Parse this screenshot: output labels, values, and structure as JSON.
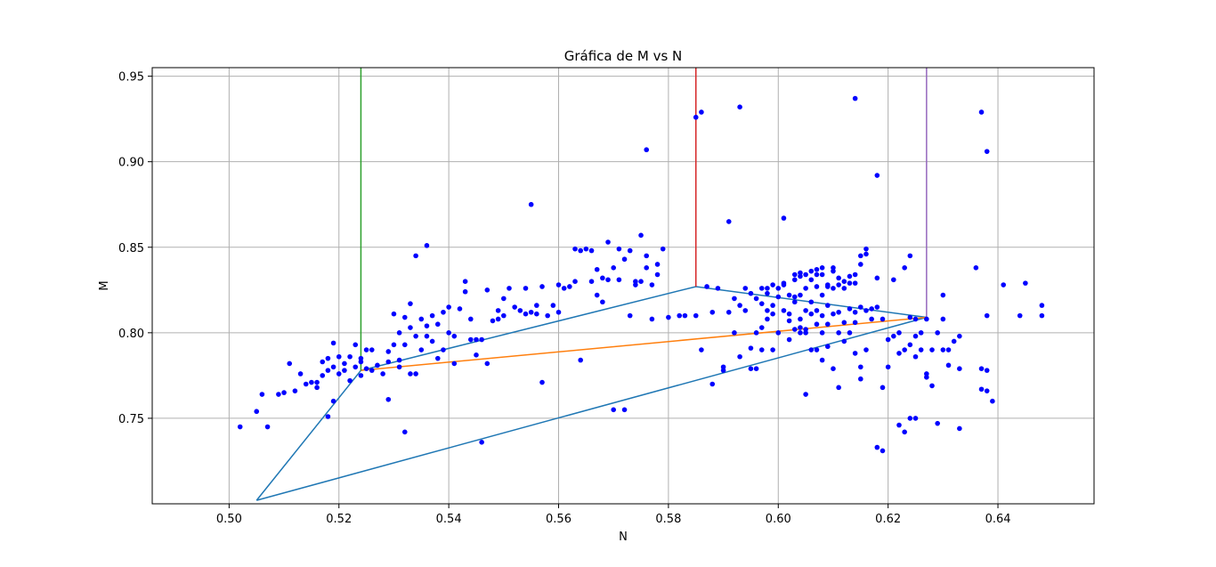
{
  "chart_data": {
    "type": "scatter",
    "title": "Gráfica de M vs N",
    "xlabel": "N",
    "ylabel": "M",
    "xlim": [
      0.486,
      0.6575
    ],
    "ylim": [
      0.7,
      0.955
    ],
    "x_ticks": [
      0.5,
      0.52,
      0.54,
      0.56,
      0.58,
      0.6,
      0.62,
      0.64
    ],
    "x_tick_labels": [
      "0.50",
      "0.52",
      "0.54",
      "0.56",
      "0.58",
      "0.60",
      "0.62",
      "0.64"
    ],
    "y_ticks": [
      0.75,
      0.8,
      0.85,
      0.9,
      0.95
    ],
    "y_tick_labels": [
      "0.75",
      "0.80",
      "0.85",
      "0.90",
      "0.95"
    ],
    "grid": true,
    "colors": {
      "points": "#0000ff",
      "triangle": "#1f77b4",
      "orange_line": "#ff7f0e",
      "green_line": "#2ca02c",
      "red_line": "#d62728",
      "purple_line": "#9467bd",
      "grid": "#b0b0b0"
    },
    "points": [
      [
        0.502,
        0.745
      ],
      [
        0.505,
        0.754
      ],
      [
        0.506,
        0.764
      ],
      [
        0.507,
        0.745
      ],
      [
        0.509,
        0.764
      ],
      [
        0.51,
        0.765
      ],
      [
        0.511,
        0.782
      ],
      [
        0.512,
        0.766
      ],
      [
        0.513,
        0.776
      ],
      [
        0.514,
        0.77
      ],
      [
        0.515,
        0.771
      ],
      [
        0.516,
        0.768
      ],
      [
        0.516,
        0.771
      ],
      [
        0.517,
        0.775
      ],
      [
        0.517,
        0.783
      ],
      [
        0.518,
        0.785
      ],
      [
        0.518,
        0.778
      ],
      [
        0.518,
        0.751
      ],
      [
        0.519,
        0.76
      ],
      [
        0.519,
        0.794
      ],
      [
        0.519,
        0.78
      ],
      [
        0.52,
        0.786
      ],
      [
        0.52,
        0.776
      ],
      [
        0.521,
        0.778
      ],
      [
        0.521,
        0.782
      ],
      [
        0.522,
        0.772
      ],
      [
        0.522,
        0.786
      ],
      [
        0.523,
        0.793
      ],
      [
        0.523,
        0.78
      ],
      [
        0.524,
        0.785
      ],
      [
        0.524,
        0.775
      ],
      [
        0.524,
        0.783
      ],
      [
        0.525,
        0.779
      ],
      [
        0.525,
        0.79
      ],
      [
        0.526,
        0.778
      ],
      [
        0.526,
        0.79
      ],
      [
        0.527,
        0.781
      ],
      [
        0.528,
        0.776
      ],
      [
        0.529,
        0.789
      ],
      [
        0.529,
        0.783
      ],
      [
        0.529,
        0.761
      ],
      [
        0.53,
        0.811
      ],
      [
        0.53,
        0.793
      ],
      [
        0.531,
        0.8
      ],
      [
        0.531,
        0.784
      ],
      [
        0.531,
        0.78
      ],
      [
        0.532,
        0.742
      ],
      [
        0.532,
        0.793
      ],
      [
        0.532,
        0.809
      ],
      [
        0.533,
        0.803
      ],
      [
        0.533,
        0.776
      ],
      [
        0.533,
        0.817
      ],
      [
        0.534,
        0.798
      ],
      [
        0.534,
        0.845
      ],
      [
        0.534,
        0.776
      ],
      [
        0.535,
        0.808
      ],
      [
        0.535,
        0.79
      ],
      [
        0.536,
        0.798
      ],
      [
        0.536,
        0.804
      ],
      [
        0.536,
        0.851
      ],
      [
        0.537,
        0.795
      ],
      [
        0.537,
        0.81
      ],
      [
        0.538,
        0.805
      ],
      [
        0.538,
        0.785
      ],
      [
        0.539,
        0.812
      ],
      [
        0.539,
        0.79
      ],
      [
        0.54,
        0.8
      ],
      [
        0.54,
        0.815
      ],
      [
        0.541,
        0.782
      ],
      [
        0.541,
        0.798
      ],
      [
        0.542,
        0.814
      ],
      [
        0.543,
        0.824
      ],
      [
        0.543,
        0.83
      ],
      [
        0.544,
        0.808
      ],
      [
        0.544,
        0.796
      ],
      [
        0.545,
        0.787
      ],
      [
        0.545,
        0.796
      ],
      [
        0.546,
        0.736
      ],
      [
        0.546,
        0.796
      ],
      [
        0.547,
        0.782
      ],
      [
        0.547,
        0.825
      ],
      [
        0.548,
        0.807
      ],
      [
        0.549,
        0.813
      ],
      [
        0.549,
        0.808
      ],
      [
        0.55,
        0.82
      ],
      [
        0.55,
        0.81
      ],
      [
        0.551,
        0.826
      ],
      [
        0.552,
        0.815
      ],
      [
        0.553,
        0.813
      ],
      [
        0.554,
        0.826
      ],
      [
        0.554,
        0.811
      ],
      [
        0.555,
        0.875
      ],
      [
        0.555,
        0.812
      ],
      [
        0.556,
        0.816
      ],
      [
        0.556,
        0.811
      ],
      [
        0.557,
        0.827
      ],
      [
        0.557,
        0.771
      ],
      [
        0.558,
        0.81
      ],
      [
        0.559,
        0.816
      ],
      [
        0.56,
        0.828
      ],
      [
        0.56,
        0.812
      ],
      [
        0.561,
        0.826
      ],
      [
        0.562,
        0.827
      ],
      [
        0.563,
        0.83
      ],
      [
        0.563,
        0.849
      ],
      [
        0.564,
        0.784
      ],
      [
        0.564,
        0.848
      ],
      [
        0.565,
        0.849
      ],
      [
        0.566,
        0.848
      ],
      [
        0.566,
        0.83
      ],
      [
        0.567,
        0.837
      ],
      [
        0.567,
        0.822
      ],
      [
        0.568,
        0.832
      ],
      [
        0.568,
        0.818
      ],
      [
        0.569,
        0.831
      ],
      [
        0.569,
        0.853
      ],
      [
        0.57,
        0.755
      ],
      [
        0.57,
        0.838
      ],
      [
        0.571,
        0.849
      ],
      [
        0.571,
        0.831
      ],
      [
        0.572,
        0.755
      ],
      [
        0.572,
        0.843
      ],
      [
        0.573,
        0.848
      ],
      [
        0.573,
        0.81
      ],
      [
        0.574,
        0.83
      ],
      [
        0.574,
        0.828
      ],
      [
        0.575,
        0.857
      ],
      [
        0.575,
        0.83
      ],
      [
        0.576,
        0.907
      ],
      [
        0.576,
        0.845
      ],
      [
        0.576,
        0.838
      ],
      [
        0.577,
        0.808
      ],
      [
        0.577,
        0.828
      ],
      [
        0.578,
        0.834
      ],
      [
        0.578,
        0.84
      ],
      [
        0.579,
        0.849
      ],
      [
        0.58,
        0.809
      ],
      [
        0.582,
        0.81
      ],
      [
        0.583,
        0.81
      ],
      [
        0.585,
        0.926
      ],
      [
        0.585,
        0.81
      ],
      [
        0.586,
        0.929
      ],
      [
        0.586,
        0.79
      ],
      [
        0.587,
        0.827
      ],
      [
        0.588,
        0.812
      ],
      [
        0.588,
        0.77
      ],
      [
        0.589,
        0.826
      ],
      [
        0.59,
        0.778
      ],
      [
        0.59,
        0.78
      ],
      [
        0.591,
        0.865
      ],
      [
        0.591,
        0.812
      ],
      [
        0.592,
        0.82
      ],
      [
        0.592,
        0.8
      ],
      [
        0.593,
        0.786
      ],
      [
        0.593,
        0.816
      ],
      [
        0.593,
        0.932
      ],
      [
        0.594,
        0.813
      ],
      [
        0.594,
        0.826
      ],
      [
        0.595,
        0.823
      ],
      [
        0.595,
        0.791
      ],
      [
        0.595,
        0.779
      ],
      [
        0.596,
        0.82
      ],
      [
        0.596,
        0.8
      ],
      [
        0.596,
        0.779
      ],
      [
        0.597,
        0.826
      ],
      [
        0.597,
        0.817
      ],
      [
        0.597,
        0.803
      ],
      [
        0.597,
        0.79
      ],
      [
        0.598,
        0.823
      ],
      [
        0.598,
        0.826
      ],
      [
        0.598,
        0.813
      ],
      [
        0.598,
        0.808
      ],
      [
        0.599,
        0.828
      ],
      [
        0.599,
        0.816
      ],
      [
        0.599,
        0.79
      ],
      [
        0.599,
        0.811
      ],
      [
        0.6,
        0.826
      ],
      [
        0.6,
        0.821
      ],
      [
        0.6,
        0.8
      ],
      [
        0.601,
        0.829
      ],
      [
        0.601,
        0.813
      ],
      [
        0.601,
        0.867
      ],
      [
        0.601,
        0.828
      ],
      [
        0.602,
        0.822
      ],
      [
        0.602,
        0.811
      ],
      [
        0.602,
        0.807
      ],
      [
        0.602,
        0.796
      ],
      [
        0.603,
        0.831
      ],
      [
        0.603,
        0.834
      ],
      [
        0.603,
        0.821
      ],
      [
        0.603,
        0.802
      ],
      [
        0.603,
        0.818
      ],
      [
        0.604,
        0.835
      ],
      [
        0.604,
        0.833
      ],
      [
        0.604,
        0.822
      ],
      [
        0.604,
        0.808
      ],
      [
        0.604,
        0.8
      ],
      [
        0.604,
        0.803
      ],
      [
        0.605,
        0.834
      ],
      [
        0.605,
        0.826
      ],
      [
        0.605,
        0.813
      ],
      [
        0.605,
        0.802
      ],
      [
        0.605,
        0.764
      ],
      [
        0.605,
        0.8
      ],
      [
        0.606,
        0.836
      ],
      [
        0.606,
        0.831
      ],
      [
        0.606,
        0.818
      ],
      [
        0.606,
        0.811
      ],
      [
        0.606,
        0.79
      ],
      [
        0.607,
        0.837
      ],
      [
        0.607,
        0.834
      ],
      [
        0.607,
        0.827
      ],
      [
        0.607,
        0.813
      ],
      [
        0.607,
        0.805
      ],
      [
        0.607,
        0.79
      ],
      [
        0.608,
        0.838
      ],
      [
        0.608,
        0.834
      ],
      [
        0.608,
        0.822
      ],
      [
        0.608,
        0.81
      ],
      [
        0.608,
        0.8
      ],
      [
        0.608,
        0.784
      ],
      [
        0.609,
        0.828
      ],
      [
        0.609,
        0.827
      ],
      [
        0.609,
        0.816
      ],
      [
        0.609,
        0.805
      ],
      [
        0.609,
        0.792
      ],
      [
        0.61,
        0.838
      ],
      [
        0.61,
        0.836
      ],
      [
        0.61,
        0.826
      ],
      [
        0.61,
        0.811
      ],
      [
        0.61,
        0.779
      ],
      [
        0.611,
        0.832
      ],
      [
        0.611,
        0.828
      ],
      [
        0.611,
        0.812
      ],
      [
        0.611,
        0.768
      ],
      [
        0.611,
        0.8
      ],
      [
        0.612,
        0.83
      ],
      [
        0.612,
        0.826
      ],
      [
        0.612,
        0.806
      ],
      [
        0.612,
        0.795
      ],
      [
        0.613,
        0.833
      ],
      [
        0.613,
        0.829
      ],
      [
        0.613,
        0.814
      ],
      [
        0.613,
        0.8
      ],
      [
        0.614,
        0.834
      ],
      [
        0.614,
        0.829
      ],
      [
        0.614,
        0.812
      ],
      [
        0.614,
        0.806
      ],
      [
        0.614,
        0.788
      ],
      [
        0.614,
        0.937
      ],
      [
        0.615,
        0.845
      ],
      [
        0.615,
        0.84
      ],
      [
        0.615,
        0.815
      ],
      [
        0.615,
        0.78
      ],
      [
        0.615,
        0.773
      ],
      [
        0.616,
        0.849
      ],
      [
        0.616,
        0.846
      ],
      [
        0.616,
        0.813
      ],
      [
        0.616,
        0.79
      ],
      [
        0.617,
        0.814
      ],
      [
        0.617,
        0.808
      ],
      [
        0.618,
        0.832
      ],
      [
        0.618,
        0.815
      ],
      [
        0.618,
        0.892
      ],
      [
        0.618,
        0.733
      ],
      [
        0.619,
        0.731
      ],
      [
        0.619,
        0.808
      ],
      [
        0.619,
        0.768
      ],
      [
        0.62,
        0.796
      ],
      [
        0.62,
        0.78
      ],
      [
        0.621,
        0.831
      ],
      [
        0.621,
        0.798
      ],
      [
        0.622,
        0.746
      ],
      [
        0.622,
        0.8
      ],
      [
        0.622,
        0.788
      ],
      [
        0.623,
        0.838
      ],
      [
        0.623,
        0.79
      ],
      [
        0.623,
        0.742
      ],
      [
        0.624,
        0.809
      ],
      [
        0.624,
        0.793
      ],
      [
        0.624,
        0.75
      ],
      [
        0.624,
        0.845
      ],
      [
        0.625,
        0.75
      ],
      [
        0.625,
        0.808
      ],
      [
        0.625,
        0.798
      ],
      [
        0.625,
        0.786
      ],
      [
        0.626,
        0.8
      ],
      [
        0.626,
        0.79
      ],
      [
        0.627,
        0.774
      ],
      [
        0.627,
        0.808
      ],
      [
        0.627,
        0.776
      ],
      [
        0.628,
        0.769
      ],
      [
        0.628,
        0.79
      ],
      [
        0.629,
        0.8
      ],
      [
        0.629,
        0.747
      ],
      [
        0.63,
        0.822
      ],
      [
        0.63,
        0.808
      ],
      [
        0.63,
        0.79
      ],
      [
        0.631,
        0.79
      ],
      [
        0.631,
        0.781
      ],
      [
        0.632,
        0.795
      ],
      [
        0.633,
        0.744
      ],
      [
        0.633,
        0.798
      ],
      [
        0.633,
        0.779
      ],
      [
        0.636,
        0.838
      ],
      [
        0.637,
        0.779
      ],
      [
        0.637,
        0.929
      ],
      [
        0.637,
        0.767
      ],
      [
        0.638,
        0.906
      ],
      [
        0.638,
        0.81
      ],
      [
        0.638,
        0.778
      ],
      [
        0.638,
        0.766
      ],
      [
        0.639,
        0.76
      ],
      [
        0.641,
        0.828
      ],
      [
        0.644,
        0.81
      ],
      [
        0.645,
        0.829
      ],
      [
        0.648,
        0.81
      ],
      [
        0.648,
        0.816
      ]
    ],
    "lines": [
      {
        "color_key": "triangle",
        "x": [
          0.505,
          0.524,
          0.585,
          0.627,
          0.505
        ],
        "y": [
          0.702,
          0.778,
          0.827,
          0.809,
          0.702
        ]
      },
      {
        "color_key": "orange_line",
        "x": [
          0.524,
          0.627
        ],
        "y": [
          0.778,
          0.809
        ]
      },
      {
        "color_key": "green_line",
        "x": [
          0.524,
          0.524
        ],
        "y": [
          0.778,
          0.955
        ]
      },
      {
        "color_key": "red_line",
        "x": [
          0.585,
          0.585
        ],
        "y": [
          0.827,
          0.955
        ]
      },
      {
        "color_key": "purple_line",
        "x": [
          0.627,
          0.627
        ],
        "y": [
          0.809,
          0.955
        ]
      }
    ]
  }
}
